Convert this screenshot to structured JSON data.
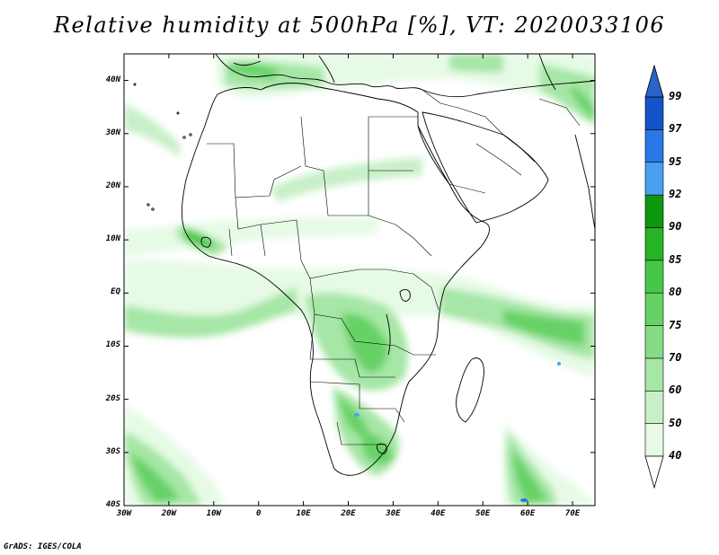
{
  "title": "Relative humidity at 500hPa [%], VT: 2020033106",
  "credit": "GrADS: IGES/COLA",
  "map": {
    "lon_ticks": [
      {
        "value": -30,
        "label": "30W"
      },
      {
        "value": -20,
        "label": "20W"
      },
      {
        "value": -10,
        "label": "10W"
      },
      {
        "value": 0,
        "label": "0"
      },
      {
        "value": 10,
        "label": "10E"
      },
      {
        "value": 20,
        "label": "20E"
      },
      {
        "value": 30,
        "label": "30E"
      },
      {
        "value": 40,
        "label": "40E"
      },
      {
        "value": 50,
        "label": "50E"
      },
      {
        "value": 60,
        "label": "60E"
      },
      {
        "value": 70,
        "label": "70E"
      }
    ],
    "lat_ticks": [
      {
        "value": 40,
        "label": "40N"
      },
      {
        "value": 30,
        "label": "30N"
      },
      {
        "value": 20,
        "label": "20N"
      },
      {
        "value": 10,
        "label": "10N"
      },
      {
        "value": 0,
        "label": "EQ"
      },
      {
        "value": -10,
        "label": "10S"
      },
      {
        "value": -20,
        "label": "20S"
      },
      {
        "value": -30,
        "label": "30S"
      },
      {
        "value": -40,
        "label": "40S"
      }
    ],
    "lon_range": [
      -30,
      75
    ],
    "lat_range": [
      -40,
      45
    ]
  },
  "colorbar": {
    "levels": [
      "40",
      "50",
      "60",
      "70",
      "75",
      "80",
      "85",
      "90",
      "92",
      "95",
      "97",
      "99"
    ],
    "colors": [
      "#ffffff",
      "#e6fae6",
      "#c8f0c8",
      "#a6e6a6",
      "#86dc86",
      "#66d266",
      "#46c846",
      "#26b426",
      "#0f960f",
      "#4aa0f0",
      "#2a78e6",
      "#1454c8",
      "#2a64c8"
    ]
  },
  "colors": {
    "coast": "#000000",
    "background": "#ffffff"
  }
}
